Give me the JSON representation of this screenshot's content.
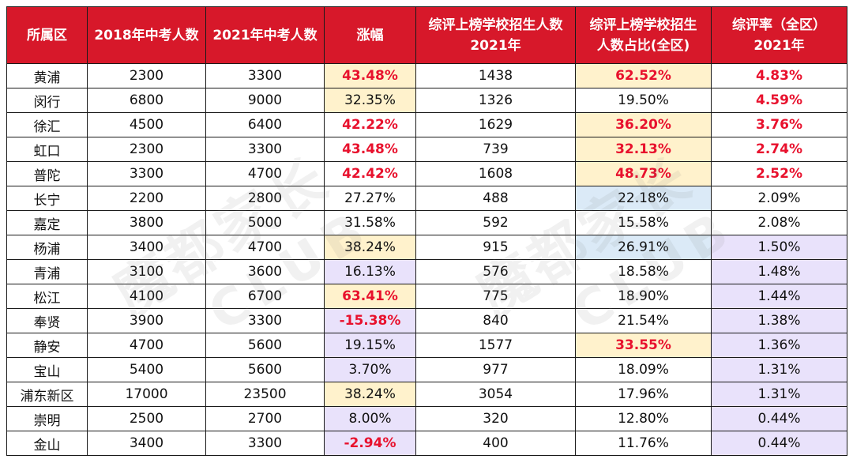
{
  "table": {
    "headers": [
      "所属区",
      "2018年中考人数",
      "2021年中考人数",
      "涨幅",
      "综评上榜学校招生人数\n2021年",
      "综评上榜学校招生\n人数占比(全区)",
      "综评率（全区）\n2021年"
    ],
    "rows": [
      [
        "黄浦",
        "2300",
        "3300",
        "43.48%",
        "1438",
        "62.52%",
        "4.83%"
      ],
      [
        "闵行",
        "6800",
        "9000",
        "32.35%",
        "1326",
        "19.50%",
        "4.59%"
      ],
      [
        "徐汇",
        "4500",
        "6400",
        "42.22%",
        "1629",
        "36.20%",
        "3.76%"
      ],
      [
        "虹口",
        "2300",
        "3300",
        "43.48%",
        "739",
        "32.13%",
        "2.74%"
      ],
      [
        "普陀",
        "3300",
        "4700",
        "42.42%",
        "1608",
        "48.73%",
        "2.52%"
      ],
      [
        "长宁",
        "2200",
        "2800",
        "27.27%",
        "488",
        "22.18%",
        "2.09%"
      ],
      [
        "嘉定",
        "3800",
        "5000",
        "31.58%",
        "592",
        "15.58%",
        "2.08%"
      ],
      [
        "杨浦",
        "3400",
        "4700",
        "38.24%",
        "915",
        "26.91%",
        "1.50%"
      ],
      [
        "青浦",
        "3100",
        "3600",
        "16.13%",
        "576",
        "18.58%",
        "1.48%"
      ],
      [
        "松江",
        "4100",
        "6700",
        "63.41%",
        "775",
        "18.90%",
        "1.44%"
      ],
      [
        "奉贤",
        "3900",
        "3300",
        "-15.38%",
        "840",
        "21.54%",
        "1.38%"
      ],
      [
        "静安",
        "4700",
        "5600",
        "19.15%",
        "1577",
        "33.55%",
        "1.36%"
      ],
      [
        "宝山",
        "5400",
        "5600",
        "3.70%",
        "977",
        "18.09%",
        "1.31%"
      ],
      [
        "浦东新区",
        "17000",
        "23500",
        "38.24%",
        "3054",
        "17.96%",
        "1.31%"
      ],
      [
        "崇明",
        "2500",
        "2700",
        "8.00%",
        "320",
        "12.80%",
        "0.44%"
      ],
      [
        "金山",
        "3400",
        "3300",
        "-2.94%",
        "400",
        "11.76%",
        "0.44%"
      ]
    ]
  },
  "watermark": {
    "text": "魔都家长",
    "subtext": "CLUB"
  },
  "colors": {
    "header_bg": "#d7182a",
    "emphasis_red": "#e8112d",
    "highlight_yellow": "#fff2cc",
    "highlight_purple": "#e9e2fb",
    "highlight_blue": "#dbeaf7"
  }
}
